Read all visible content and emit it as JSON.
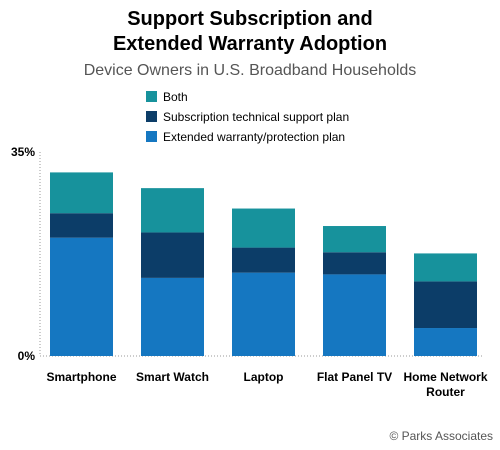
{
  "chart_data": {
    "type": "bar",
    "stacked": true,
    "title": "Support Subscription and Extended Warranty Adoption",
    "title_lines": [
      "Support Subscription and",
      "Extended Warranty Adoption"
    ],
    "subtitle": "Device Owners in U.S. Broadband Households",
    "categories": [
      "Smartphone",
      "Smart Watch",
      "Laptop",
      "Flat Panel TV",
      "Home Network Router"
    ],
    "category_lines": [
      [
        "Smartphone"
      ],
      [
        "Smart Watch"
      ],
      [
        "Laptop"
      ],
      [
        "Flat Panel TV"
      ],
      [
        "Home Network",
        "Router"
      ]
    ],
    "series": [
      {
        "name": "Extended warranty/protection plan",
        "color": "#1577c1",
        "values": [
          20.3,
          13.4,
          14.3,
          14.0,
          4.8
        ]
      },
      {
        "name": "Subscription technical support plan",
        "color": "#0c3d68",
        "values": [
          4.2,
          7.8,
          4.3,
          3.8,
          8.0
        ]
      },
      {
        "name": "Both",
        "color": "#17929c",
        "values": [
          7.0,
          7.6,
          6.7,
          4.5,
          4.8
        ]
      }
    ],
    "legend_order": [
      "Both",
      "Subscription technical support plan",
      "Extended warranty/protection plan"
    ],
    "ylim": [
      0,
      35
    ],
    "y_ticks": [
      "35%",
      "0%"
    ],
    "legend_position": "top-center",
    "grid": false
  },
  "credit": "© Parks Associates"
}
